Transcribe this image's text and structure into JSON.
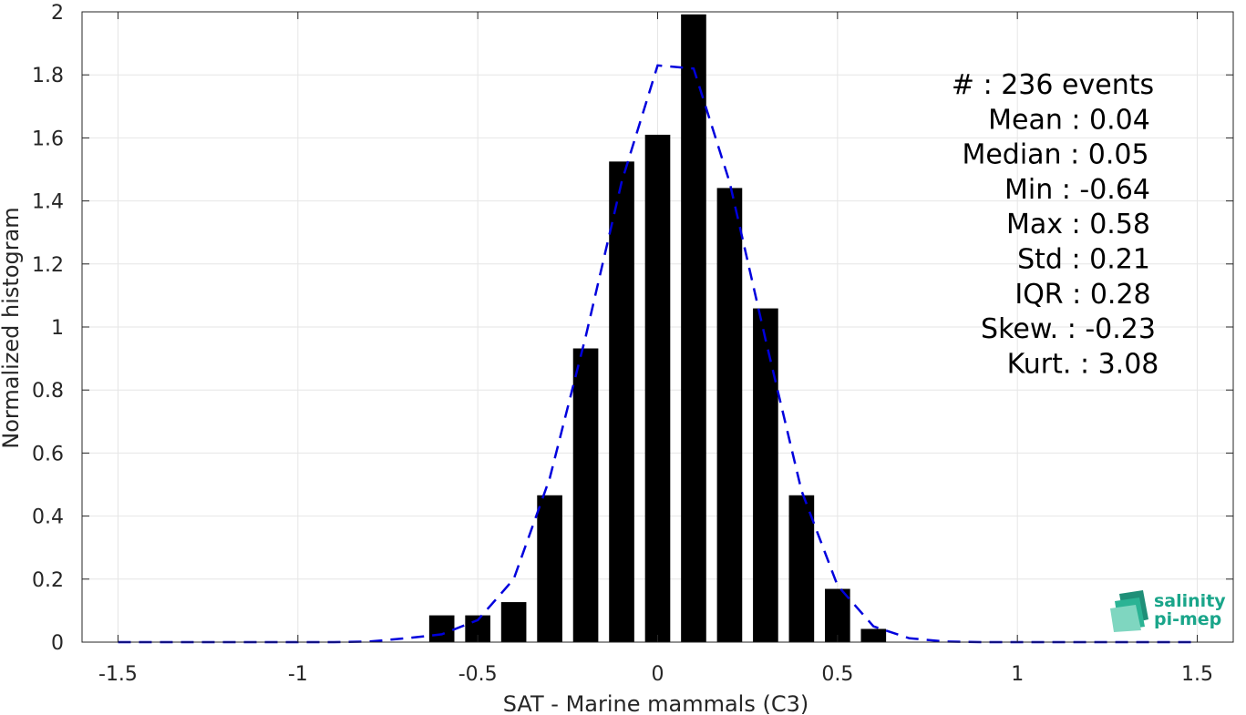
{
  "chart_data": {
    "type": "bar",
    "xlabel": "SAT - Marine mammals (C3)",
    "ylabel": "Normalized histogram",
    "xlim": [
      -1.6,
      1.6
    ],
    "ylim": [
      0,
      2
    ],
    "xticks": [
      -1.5,
      -1,
      -0.5,
      0,
      0.5,
      1,
      1.5
    ],
    "xtick_labels": [
      "-1.5",
      "-1",
      "-0.5",
      "0",
      "0.5",
      "1",
      "1.5"
    ],
    "yticks": [
      0,
      0.2,
      0.4,
      0.6,
      0.8,
      1,
      1.2,
      1.4,
      1.6,
      1.8,
      2
    ],
    "ytick_labels": [
      "0",
      "0.2",
      "0.4",
      "0.6",
      "0.8",
      "1",
      "1.2",
      "1.4",
      "1.6",
      "1.8",
      "2"
    ],
    "grid": true,
    "bar_width": 0.07,
    "bars": {
      "x": [
        -0.6,
        -0.5,
        -0.4,
        -0.3,
        -0.2,
        -0.1,
        0.0,
        0.1,
        0.2,
        0.3,
        0.4,
        0.5,
        0.6
      ],
      "values": [
        0.085,
        0.085,
        0.127,
        0.466,
        0.932,
        1.525,
        1.61,
        1.992,
        1.441,
        1.059,
        0.466,
        0.169,
        0.042
      ],
      "color": "#000000"
    },
    "fit_curve": {
      "style": "dashed",
      "color": "#0000dd",
      "x": [
        -1.5,
        -1.4,
        -1.3,
        -1.2,
        -1.1,
        -1.0,
        -0.9,
        -0.8,
        -0.7,
        -0.6,
        -0.5,
        -0.4,
        -0.3,
        -0.2,
        -0.1,
        0.0,
        0.1,
        0.2,
        0.3,
        0.4,
        0.5,
        0.6,
        0.7,
        0.8,
        0.9,
        1.0,
        1.1,
        1.2,
        1.3,
        1.4,
        1.5
      ],
      "y": [
        0,
        0,
        0,
        0,
        0,
        0,
        0,
        0.002,
        0.012,
        0.025,
        0.07,
        0.2,
        0.52,
        0.97,
        1.46,
        1.83,
        1.82,
        1.46,
        0.96,
        0.48,
        0.18,
        0.05,
        0.012,
        0.002,
        0,
        0,
        0,
        0,
        0,
        0,
        0
      ]
    },
    "stats": [
      {
        "label": "#  : 236 events"
      },
      {
        "label": "Mean : 0.04"
      },
      {
        "label": "Median : 0.05"
      },
      {
        "label": "Min : -0.64"
      },
      {
        "label": "Max : 0.58"
      },
      {
        "label": "Std : 0.21"
      },
      {
        "label": "IQR : 0.28"
      },
      {
        "label": "Skew. : -0.23"
      },
      {
        "label": "Kurt. : 3.08"
      }
    ]
  },
  "logo": {
    "line1": "salinity",
    "line2": "pi-mep",
    "icon": "wave-layers-icon",
    "color": "#1aa58a"
  }
}
